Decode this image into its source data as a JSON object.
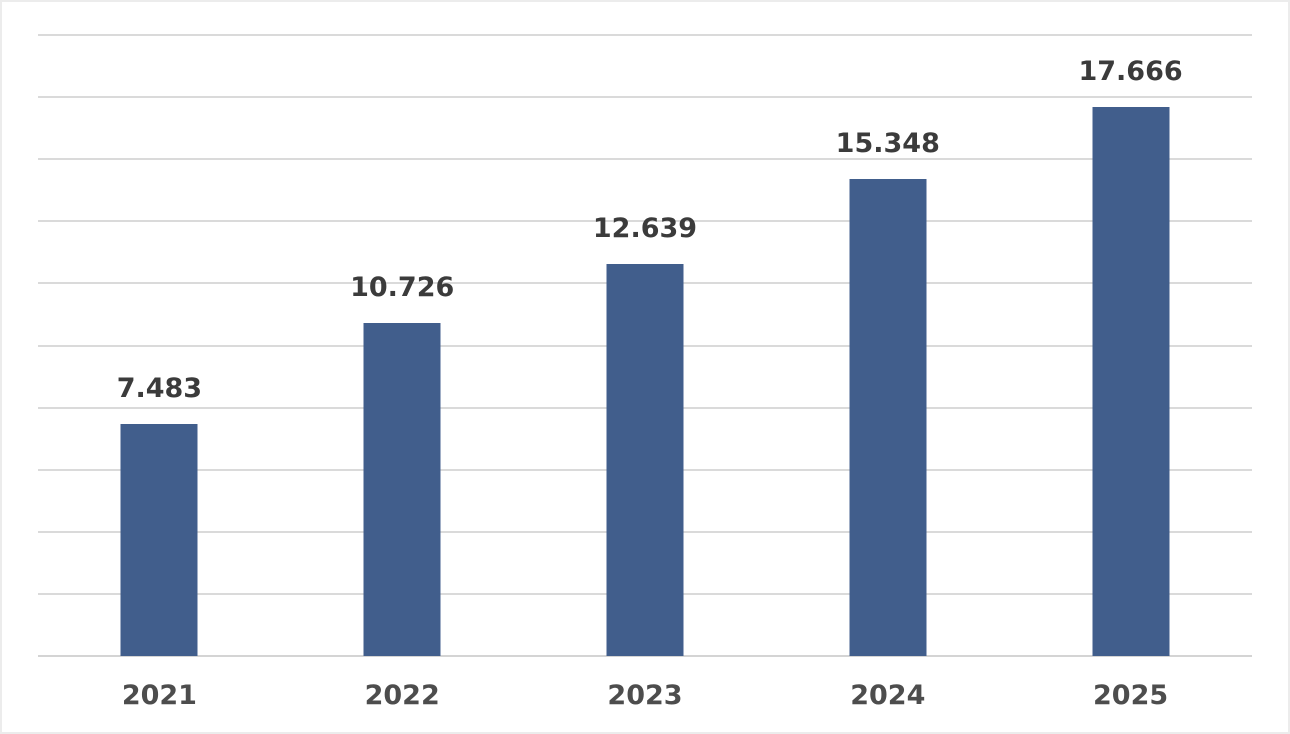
{
  "chart_data": {
    "type": "bar",
    "title": "",
    "xlabel": "",
    "ylabel": "",
    "categories": [
      "2021",
      "2022",
      "2023",
      "2024",
      "2025"
    ],
    "values": [
      7.483,
      10.726,
      12.639,
      15.348,
      17.666
    ],
    "value_labels": [
      "7.483",
      "10.726",
      "12.639",
      "15.348",
      "17.666"
    ],
    "ylim": [
      0,
      20
    ],
    "gridline_step": 2,
    "grid": true,
    "legend": "none",
    "colors": {
      "bar": "#415e8c",
      "value_label": "#3b3b3b",
      "axis_label": "#4d4d4d",
      "gridline": "#dadada",
      "axis_line": "#d4d4d4",
      "background": "#ffffff",
      "border": "#ececec"
    }
  }
}
